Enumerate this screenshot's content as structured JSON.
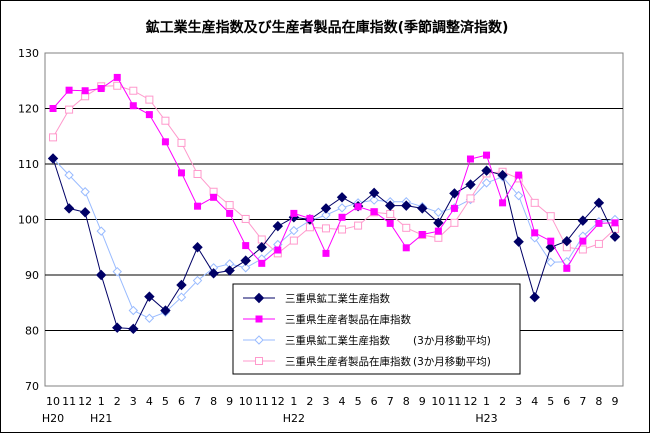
{
  "chart_data": {
    "type": "line",
    "title": "鉱工業生産指数及び生産者製品在庫指数(季節調整済指数)",
    "xlabel": "",
    "ylabel": "",
    "ylim": [
      70,
      130
    ],
    "yticks": [
      70,
      80,
      90,
      100,
      110,
      120,
      130
    ],
    "grid": "horizontal",
    "legend_position": "center-left",
    "categories": [
      "10",
      "11",
      "12",
      "1",
      "2",
      "3",
      "4",
      "5",
      "6",
      "7",
      "8",
      "9",
      "10",
      "11",
      "12",
      "1",
      "2",
      "3",
      "4",
      "5",
      "6",
      "7",
      "8",
      "9",
      "10",
      "11",
      "12",
      "1",
      "2",
      "3",
      "4",
      "5",
      "6",
      "7",
      "8",
      "9"
    ],
    "year_labels": [
      {
        "label": "H20",
        "index": 0
      },
      {
        "label": "H21",
        "index": 3
      },
      {
        "label": "H22",
        "index": 15
      },
      {
        "label": "H23",
        "index": 27
      }
    ],
    "series": [
      {
        "name": "三重県鉱工業生産指数",
        "style": "solid-diamond",
        "color": "#000066",
        "values": [
          111.0,
          102.0,
          101.3,
          90.0,
          80.5,
          80.3,
          86.1,
          83.6,
          88.2,
          95.0,
          90.3,
          90.8,
          92.6,
          95.0,
          98.8,
          100.4,
          100.0,
          102.0,
          104.0,
          102.4,
          104.8,
          102.5,
          102.5,
          102.0,
          99.4,
          104.7,
          106.3,
          108.8,
          108.0,
          96.0,
          86.0,
          95.0,
          96.1,
          99.8,
          103.0,
          96.9
        ]
      },
      {
        "name": "三重県生産者製品在庫指数",
        "style": "solid-square",
        "color": "#ff00ff",
        "values": [
          120.0,
          123.3,
          123.2,
          123.6,
          125.6,
          120.5,
          118.9,
          114.0,
          108.4,
          102.4,
          104.0,
          101.1,
          95.3,
          92.1,
          94.5,
          101.1,
          100.2,
          93.9,
          100.4,
          102.3,
          101.4,
          99.3,
          94.9,
          97.3,
          97.9,
          102.0,
          110.9,
          111.6,
          103.0,
          108.0,
          97.6,
          96.1,
          91.2,
          96.1,
          99.3,
          99.4
        ]
      },
      {
        "name": "三重県鉱工業生産指数",
        "note": "(3か月移動平均)",
        "style": "hollow-diamond",
        "color": "#99bbff",
        "values": [
          111.0,
          108.0,
          105.0,
          97.9,
          90.6,
          83.6,
          82.2,
          83.3,
          86.0,
          89.0,
          91.3,
          92.0,
          91.3,
          92.9,
          95.5,
          98.0,
          99.8,
          100.8,
          102.1,
          103.0,
          103.5,
          103.2,
          103.2,
          102.3,
          101.3,
          102.1,
          103.6,
          106.6,
          107.7,
          104.3,
          96.7,
          92.3,
          92.4,
          97.0,
          99.6,
          100.0
        ]
      },
      {
        "name": "三重県生産者製品在庫指数",
        "note": "(3か月移動平均)",
        "style": "hollow-square",
        "color": "#ff99cc",
        "values": [
          114.8,
          119.8,
          122.2,
          124.0,
          124.1,
          123.2,
          121.6,
          117.8,
          113.8,
          108.2,
          105.0,
          102.6,
          100.1,
          96.4,
          93.9,
          96.2,
          98.6,
          98.4,
          98.2,
          98.9,
          101.3,
          101.0,
          98.5,
          97.2,
          96.7,
          99.4,
          103.8,
          108.3,
          108.6,
          107.4,
          103.0,
          100.6,
          95.0,
          94.6,
          95.6,
          98.3
        ]
      }
    ]
  }
}
